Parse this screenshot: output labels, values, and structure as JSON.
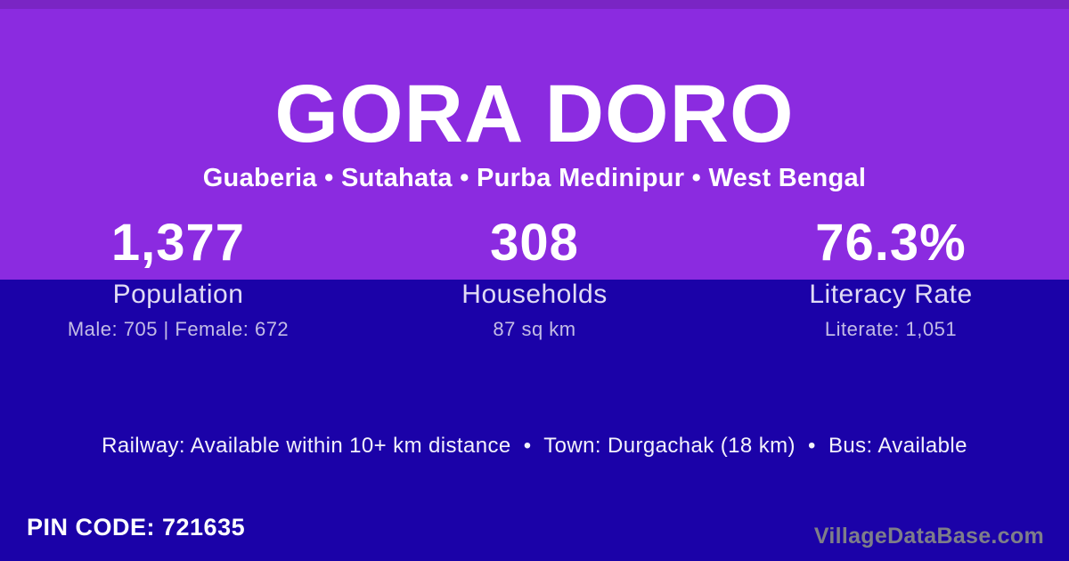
{
  "theme": {
    "top_background": "#8B2BE0",
    "bottom_background": "#1B02A8",
    "primary_text": "#FFFFFF",
    "label_text": "#E0DBF4",
    "detail_text": "#C3BCE5",
    "watermark_text": "#7E7E89"
  },
  "header": {
    "title": "GORA DORO",
    "breadcrumb": "Guaberia • Sutahata • Purba Medinipur • West Bengal"
  },
  "stats": [
    {
      "value": "1,377",
      "label": "Population",
      "detail": "Male: 705 | Female: 672"
    },
    {
      "value": "308",
      "label": "Households",
      "detail": "87 sq km"
    },
    {
      "value": "76.3%",
      "label": "Literacy Rate",
      "detail": "Literate: 1,051"
    }
  ],
  "transport": {
    "line": "Railway: Available within 10+ km distance  •  Town: Durgachak (18 km)  •  Bus: Available"
  },
  "footer": {
    "pin_code": "PIN CODE: 721635",
    "watermark": "VillageDataBase.com"
  }
}
